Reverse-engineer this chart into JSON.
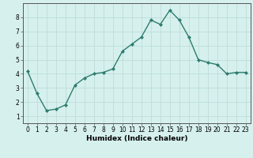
{
  "x": [
    0,
    1,
    2,
    3,
    4,
    5,
    6,
    7,
    8,
    9,
    10,
    11,
    12,
    13,
    14,
    15,
    16,
    17,
    18,
    19,
    20,
    21,
    22,
    23
  ],
  "y": [
    4.2,
    2.6,
    1.4,
    1.5,
    1.8,
    3.2,
    3.7,
    4.0,
    4.1,
    4.35,
    5.6,
    6.1,
    6.6,
    7.8,
    7.5,
    8.5,
    7.8,
    6.6,
    5.0,
    4.8,
    4.65,
    4.0,
    4.1,
    4.1
  ],
  "xlabel": "Humidex (Indice chaleur)",
  "xlim": [
    -0.5,
    23.5
  ],
  "ylim": [
    0.5,
    9.0
  ],
  "yticks": [
    1,
    2,
    3,
    4,
    5,
    6,
    7,
    8
  ],
  "xticks": [
    0,
    1,
    2,
    3,
    4,
    5,
    6,
    7,
    8,
    9,
    10,
    11,
    12,
    13,
    14,
    15,
    16,
    17,
    18,
    19,
    20,
    21,
    22,
    23
  ],
  "line_color": "#2e7d6e",
  "marker": "D",
  "marker_size": 2.0,
  "bg_color": "#d6f0ee",
  "grid_color": "#c0e0dc",
  "tick_fontsize": 5.5,
  "xlabel_fontsize": 6.5,
  "line_width": 1.0
}
